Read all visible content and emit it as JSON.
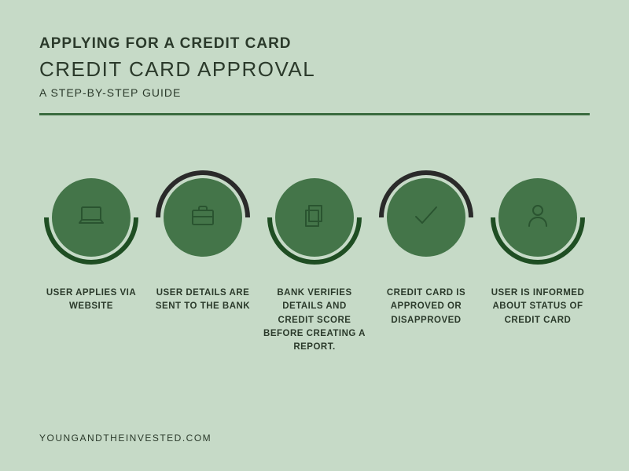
{
  "colors": {
    "background": "#c6dac7",
    "text_dark": "#2b3a2b",
    "circle_fill": "#447549",
    "icon_stroke": "#2a5430",
    "arc_dark_green": "#1f4e23",
    "arc_black": "#2a2a2a",
    "divider": "#3a6b3f"
  },
  "typography": {
    "title1_size": 19,
    "title2_size": 26,
    "title3_size": 14,
    "label_size": 11.5,
    "footer_size": 12
  },
  "header": {
    "line1": "APPLYING FOR A CREDIT CARD",
    "line2": "CREDIT CARD APPROVAL",
    "line3": "A STEP-BY-STEP GUIDE"
  },
  "layout": {
    "circle_diameter": 100,
    "arc_diameter": 120,
    "arc_stroke_width": 6
  },
  "steps": [
    {
      "icon": "laptop",
      "arc_position": "bottom",
      "arc_color_key": "arc_dark_green",
      "label": "USER APPLIES VIA WEBSITE"
    },
    {
      "icon": "briefcase",
      "arc_position": "top",
      "arc_color_key": "arc_black",
      "label": "USER DETAILS ARE SENT TO THE BANK"
    },
    {
      "icon": "documents",
      "arc_position": "bottom",
      "arc_color_key": "arc_dark_green",
      "label": "BANK VERIFIES DETAILS AND CREDIT SCORE BEFORE CREATING A REPORT."
    },
    {
      "icon": "checkmark",
      "arc_position": "top",
      "arc_color_key": "arc_black",
      "label": "CREDIT CARD IS APPROVED OR DISAPPROVED"
    },
    {
      "icon": "person",
      "arc_position": "bottom",
      "arc_color_key": "arc_dark_green",
      "label": "USER IS INFORMED ABOUT STATUS OF CREDIT CARD"
    }
  ],
  "footer": {
    "text": "YOUNGANDTHEINVESTED.COM"
  }
}
